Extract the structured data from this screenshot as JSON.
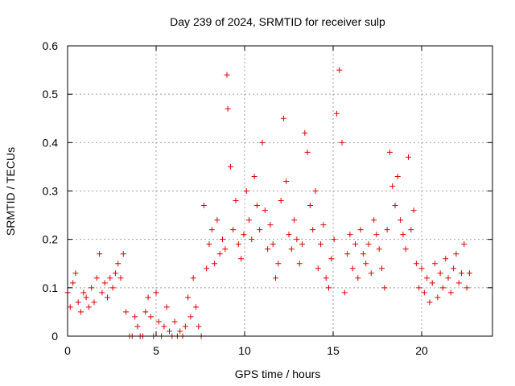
{
  "chart_data": {
    "type": "scatter",
    "title": "Day 239 of 2024, SRMTID for receiver sulp",
    "xlabel": "GPS time / hours",
    "ylabel": "SRMTID / TECUs",
    "xlim": [
      0,
      24
    ],
    "ylim": [
      0,
      0.6
    ],
    "x_ticks": [
      0,
      5,
      10,
      15,
      20
    ],
    "y_ticks": [
      0,
      0.1,
      0.2,
      0.3,
      0.4,
      0.5,
      0.6
    ],
    "x_tick_labels": [
      "0",
      "5",
      "10",
      "15",
      "20"
    ],
    "y_tick_labels": [
      "0",
      "0.1",
      "0.2",
      "0.3",
      "0.4",
      "0.5",
      "0.6"
    ],
    "grid": true,
    "marker": "+",
    "series": [
      {
        "name": "SRMTID",
        "color": "#e00000",
        "x": [
          0.0,
          0.15,
          0.3,
          0.45,
          0.6,
          0.75,
          0.9,
          1.05,
          1.2,
          1.35,
          1.5,
          1.65,
          1.8,
          1.95,
          2.1,
          2.25,
          2.4,
          2.55,
          2.7,
          2.85,
          3.0,
          3.15,
          3.3,
          3.5,
          3.65,
          3.8,
          3.95,
          4.1,
          4.25,
          4.4,
          4.55,
          4.7,
          4.85,
          5.0,
          5.15,
          5.3,
          5.45,
          5.6,
          5.75,
          5.9,
          6.05,
          6.2,
          6.35,
          6.5,
          6.65,
          6.8,
          6.95,
          7.1,
          7.25,
          7.4,
          7.55,
          7.7,
          7.85,
          8.0,
          8.15,
          8.3,
          8.45,
          8.6,
          8.75,
          8.9,
          9.0,
          9.05,
          9.2,
          9.35,
          9.5,
          9.65,
          9.8,
          9.95,
          10.1,
          10.25,
          10.4,
          10.55,
          10.7,
          10.85,
          11.0,
          11.15,
          11.3,
          11.45,
          11.6,
          11.75,
          11.9,
          12.05,
          12.2,
          12.35,
          12.5,
          12.65,
          12.8,
          12.95,
          13.1,
          13.25,
          13.4,
          13.55,
          13.7,
          13.85,
          14.0,
          14.15,
          14.3,
          14.45,
          14.6,
          14.75,
          14.9,
          15.05,
          15.2,
          15.35,
          15.5,
          15.65,
          15.8,
          15.95,
          16.1,
          16.25,
          16.4,
          16.55,
          16.7,
          16.85,
          17.0,
          17.15,
          17.3,
          17.45,
          17.6,
          17.75,
          17.9,
          18.05,
          18.2,
          18.35,
          18.5,
          18.65,
          18.8,
          18.95,
          19.1,
          19.25,
          19.4,
          19.55,
          19.7,
          19.85,
          20.0,
          20.15,
          20.3,
          20.45,
          20.6,
          20.75,
          20.9,
          21.05,
          21.2,
          21.35,
          21.5,
          21.65,
          21.8,
          21.95,
          22.1,
          22.25,
          22.4,
          22.55,
          22.7
        ],
        "y": [
          0.09,
          0.06,
          0.11,
          0.13,
          0.07,
          0.05,
          0.09,
          0.08,
          0.06,
          0.1,
          0.07,
          0.12,
          0.17,
          0.09,
          0.11,
          0.08,
          0.12,
          0.1,
          0.13,
          0.15,
          0.12,
          0.17,
          0.05,
          0.0,
          0.0,
          0.04,
          0.02,
          0.0,
          0.0,
          0.05,
          0.08,
          0.04,
          0.0,
          0.09,
          0.03,
          0.0,
          0.02,
          0.06,
          0.01,
          0.0,
          0.03,
          0.0,
          0.01,
          0.0,
          0.02,
          0.08,
          0.04,
          0.12,
          0.06,
          0.02,
          0.0,
          0.27,
          0.14,
          0.19,
          0.22,
          0.15,
          0.24,
          0.17,
          0.2,
          0.18,
          0.54,
          0.47,
          0.35,
          0.22,
          0.28,
          0.19,
          0.16,
          0.21,
          0.3,
          0.24,
          0.2,
          0.33,
          0.27,
          0.22,
          0.4,
          0.26,
          0.18,
          0.23,
          0.19,
          0.12,
          0.15,
          0.28,
          0.45,
          0.32,
          0.21,
          0.18,
          0.24,
          0.2,
          0.15,
          0.19,
          0.42,
          0.38,
          0.27,
          0.22,
          0.3,
          0.14,
          0.19,
          0.23,
          0.12,
          0.1,
          0.16,
          0.2,
          0.46,
          0.55,
          0.4,
          0.09,
          0.17,
          0.21,
          0.14,
          0.19,
          0.12,
          0.22,
          0.17,
          0.15,
          0.19,
          0.13,
          0.24,
          0.21,
          0.18,
          0.14,
          0.1,
          0.22,
          0.38,
          0.31,
          0.27,
          0.33,
          0.24,
          0.21,
          0.18,
          0.37,
          0.22,
          0.26,
          0.15,
          0.1,
          0.14,
          0.09,
          0.12,
          0.07,
          0.11,
          0.15,
          0.08,
          0.13,
          0.1,
          0.16,
          0.12,
          0.09,
          0.14,
          0.17,
          0.11,
          0.13,
          0.19,
          0.1,
          0.13
        ]
      }
    ]
  }
}
